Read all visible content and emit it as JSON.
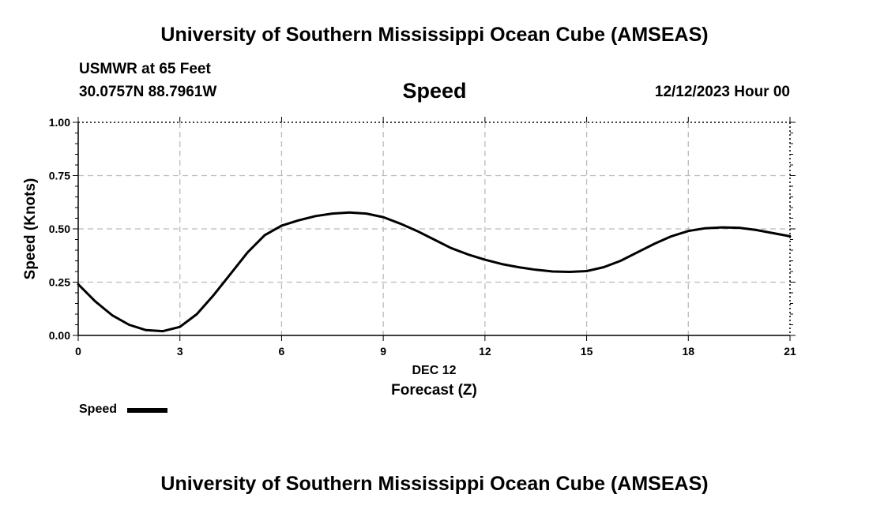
{
  "header": {
    "title": "University of Southern Mississippi Ocean Cube (AMSEAS)",
    "station": "USMWR at 65 Feet",
    "coords": "30.0757N  88.7961W",
    "variable": "Speed",
    "datetime": "12/12/2023 Hour 00"
  },
  "footer": {
    "title": "University of Southern Mississippi Ocean Cube (AMSEAS)"
  },
  "legend": {
    "label": "Speed"
  },
  "chart_data": {
    "type": "line",
    "title": "Speed",
    "xlabel": "Forecast (Z)",
    "xsublabel": "DEC 12",
    "ylabel": "Speed (Knots)",
    "xlim": [
      0,
      21
    ],
    "ylim": [
      0,
      1
    ],
    "xticks": [
      0,
      3,
      6,
      9,
      12,
      15,
      18,
      21
    ],
    "xtick_labels": [
      "0",
      "3",
      "6",
      "9",
      "12",
      "15",
      "18",
      "21"
    ],
    "yticks": [
      0,
      0.25,
      0.5,
      0.75,
      1.0
    ],
    "ytick_labels": [
      "0.00",
      "0.25",
      "0.50",
      "0.75",
      "1.00"
    ],
    "grid": true,
    "series": [
      {
        "name": "Speed",
        "color": "#000000",
        "x": [
          0,
          0.5,
          1,
          1.5,
          2,
          2.5,
          3,
          3.5,
          4,
          4.5,
          5,
          5.5,
          6,
          6.5,
          7,
          7.5,
          8,
          8.5,
          9,
          9.5,
          10,
          10.5,
          11,
          11.5,
          12,
          12.5,
          13,
          13.5,
          14,
          14.5,
          15,
          15.5,
          16,
          16.5,
          17,
          17.5,
          18,
          18.5,
          19,
          19.5,
          20,
          20.5,
          21
        ],
        "y": [
          0.24,
          0.16,
          0.095,
          0.05,
          0.025,
          0.02,
          0.04,
          0.1,
          0.19,
          0.29,
          0.39,
          0.47,
          0.515,
          0.54,
          0.56,
          0.572,
          0.577,
          0.572,
          0.555,
          0.525,
          0.49,
          0.45,
          0.41,
          0.38,
          0.355,
          0.335,
          0.32,
          0.308,
          0.3,
          0.298,
          0.302,
          0.32,
          0.35,
          0.39,
          0.43,
          0.465,
          0.49,
          0.503,
          0.507,
          0.505,
          0.495,
          0.48,
          0.465
        ]
      }
    ]
  }
}
